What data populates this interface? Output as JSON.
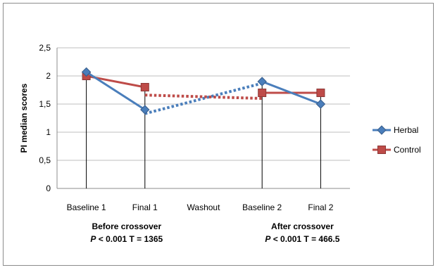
{
  "chart_data": {
    "type": "line",
    "title": "",
    "xlabel": "",
    "ylabel": "PI median scores",
    "categories": [
      "Baseline 1",
      "Final 1",
      "Washout",
      "Baseline 2",
      "Final 2"
    ],
    "ylim": [
      0,
      2.5
    ],
    "y_ticks": [
      "0",
      "0,5",
      "1",
      "1,5",
      "2",
      "2,5"
    ],
    "grid": true,
    "legend_position": "right",
    "series": [
      {
        "name": "Herbal",
        "color": "#4a7ebb",
        "marker": "diamond",
        "values": [
          2.07,
          1.4,
          null,
          1.9,
          1.5
        ]
      },
      {
        "name": "Control",
        "color": "#be4b48",
        "marker": "square",
        "values": [
          2.0,
          1.8,
          null,
          1.7,
          1.7
        ]
      }
    ],
    "washout_connectors": [
      {
        "series": "Herbal",
        "from": "Final 1",
        "to": "Baseline 2",
        "y_from": 1.33,
        "y_to": 1.87,
        "style": "dotted"
      },
      {
        "series": "Control",
        "from": "Final 1",
        "to": "Baseline 2",
        "y_from": 1.66,
        "y_to": 1.6,
        "style": "dotted"
      }
    ],
    "annotations": [
      {
        "anchor": "Final 1",
        "line1": "Before crossover",
        "line2_italic": "P",
        "line2_rest": " < 0.001 T = 1365"
      },
      {
        "anchor": "Final 2",
        "line1": "After crossover",
        "line2_italic": "P",
        "line2_rest": " < 0.001 T = 466.5"
      }
    ]
  }
}
